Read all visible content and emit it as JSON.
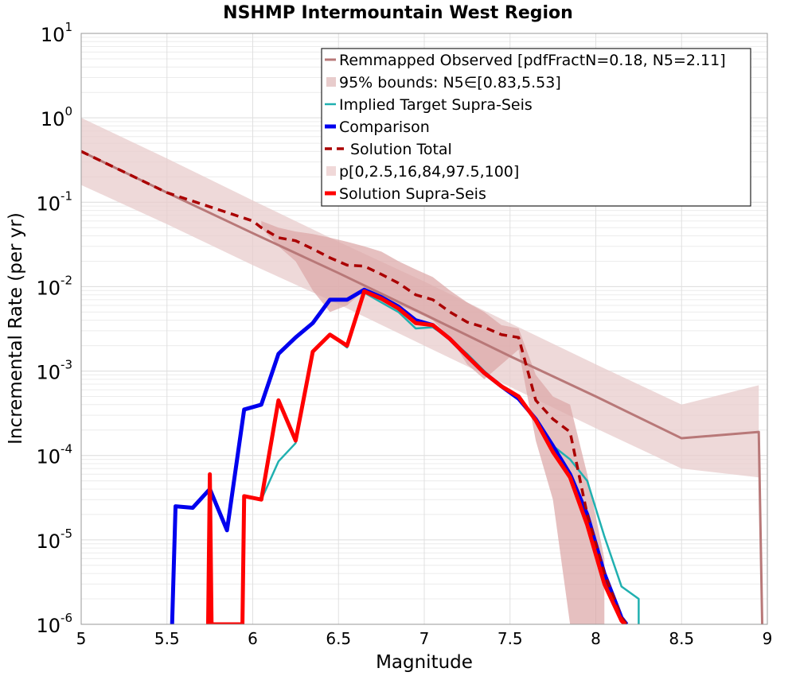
{
  "chart_data": {
    "type": "line",
    "title": "NSHMP Intermountain West Region",
    "xlabel": "Magnitude",
    "ylabel": "Incremental Rate (per yr)",
    "xlim": [
      5,
      9
    ],
    "ylim": [
      1e-06,
      10
    ],
    "y_scale": "log",
    "grid": true,
    "legend_placement": "top-right",
    "x_ticks": [
      "5",
      "5.5",
      "6",
      "6.5",
      "7",
      "7.5",
      "8",
      "8.5",
      "9"
    ],
    "x_tick_values": [
      5,
      5.5,
      6,
      6.5,
      7,
      7.5,
      8,
      8.5,
      9
    ],
    "y_ticks": [
      {
        "value": 1e-06,
        "base": "10",
        "exp": "-6"
      },
      {
        "value": 1e-05,
        "base": "10",
        "exp": "-5"
      },
      {
        "value": 0.0001,
        "base": "10",
        "exp": "-4"
      },
      {
        "value": 0.001,
        "base": "10",
        "exp": "-3"
      },
      {
        "value": 0.01,
        "base": "10",
        "exp": "-2"
      },
      {
        "value": 0.1,
        "base": "10",
        "exp": "-1"
      },
      {
        "value": 1,
        "base": "10",
        "exp": "0"
      },
      {
        "value": 10,
        "base": "10",
        "exp": "1"
      }
    ],
    "bands": [
      {
        "name": "95% bounds: N5∈[0.83,5.53]",
        "color": "#e8cccc",
        "x": [
          5.0,
          5.5,
          6.0,
          6.5,
          7.0,
          7.5,
          8.0,
          8.5,
          8.95
        ],
        "upper": [
          1.0,
          0.33,
          0.105,
          0.034,
          0.0115,
          0.0037,
          0.0012,
          0.0004,
          0.00068
        ],
        "lower": [
          0.16,
          0.055,
          0.018,
          0.0062,
          0.002,
          0.00065,
          0.00021,
          7e-05,
          5.5e-05
        ]
      },
      {
        "name": "p[0,2.5,16,84,97.5,100]",
        "color": "#dba5a5",
        "x": [
          6.05,
          6.15,
          6.25,
          6.35,
          6.45,
          6.55,
          6.65,
          6.75,
          6.85,
          6.95,
          7.05,
          7.15,
          7.25,
          7.35,
          7.45,
          7.55,
          7.65,
          7.75,
          7.85,
          7.95,
          8.05
        ],
        "upper": [
          0.06,
          0.05,
          0.045,
          0.042,
          0.038,
          0.034,
          0.03,
          0.026,
          0.02,
          0.016,
          0.013,
          0.009,
          0.0065,
          0.005,
          0.0035,
          0.0032,
          0.0009,
          0.0005,
          0.0004,
          6e-05,
          6e-06
        ],
        "lower": [
          0.05,
          0.03,
          0.02,
          0.009,
          0.005,
          0.006,
          0.009,
          0.008,
          0.006,
          0.005,
          0.004,
          0.0025,
          0.0012,
          0.0008,
          0.0012,
          0.0018,
          0.00015,
          3e-05,
          1e-06,
          1e-06,
          1e-06
        ]
      }
    ],
    "series": [
      {
        "name": "Remmapped Observed [pdfFractN=0.18, N5=2.11]",
        "color": "#b87878",
        "width": 3,
        "dash": "",
        "x": [
          5.0,
          5.5,
          6.0,
          6.5,
          7.0,
          7.5,
          8.0,
          8.5,
          8.95,
          8.97
        ],
        "y": [
          0.4,
          0.13,
          0.043,
          0.0145,
          0.0047,
          0.0015,
          0.0005,
          0.00016,
          0.00019,
          1e-06
        ]
      },
      {
        "name": "Implied Target Supra-Seis",
        "color": "#20b0b0",
        "width": 2.5,
        "dash": "",
        "x": [
          6.05,
          6.15,
          6.25,
          6.35,
          6.45,
          6.55,
          6.65,
          6.75,
          6.85,
          6.95,
          7.05,
          7.15,
          7.25,
          7.35,
          7.45,
          7.55,
          7.65,
          7.75,
          7.85,
          7.95,
          8.05,
          8.15,
          8.25,
          8.25
        ],
        "y": [
          3e-05,
          8.5e-05,
          0.00014,
          0.0017,
          0.0027,
          0.0019,
          0.0085,
          0.0065,
          0.005,
          0.0032,
          0.0033,
          0.0024,
          0.0016,
          0.001,
          0.00066,
          0.00047,
          0.00028,
          0.00013,
          9e-05,
          5e-05,
          1.1e-05,
          2.8e-06,
          2e-06,
          1e-06
        ]
      },
      {
        "name": "Comparison",
        "color": "#0000ee",
        "width": 5,
        "dash": "",
        "x": [
          5.53,
          5.55,
          5.65,
          5.75,
          5.85,
          5.95,
          6.05,
          6.15,
          6.25,
          6.35,
          6.45,
          6.55,
          6.65,
          6.75,
          6.85,
          6.95,
          7.05,
          7.15,
          7.25,
          7.35,
          7.45,
          7.55,
          7.65,
          7.75,
          7.85,
          7.95,
          8.05,
          8.15,
          8.18
        ],
        "y": [
          1e-06,
          2.5e-05,
          2.4e-05,
          4e-05,
          1.3e-05,
          0.00035,
          0.0004,
          0.0016,
          0.0025,
          0.0037,
          0.007,
          0.007,
          0.0092,
          0.0075,
          0.0058,
          0.004,
          0.0035,
          0.0024,
          0.0015,
          0.00095,
          0.00066,
          0.00047,
          0.00027,
          0.00013,
          6e-05,
          2e-05,
          4e-06,
          1.2e-06,
          1e-06
        ]
      },
      {
        "name": "Solution Total",
        "color": "#aa0000",
        "width": 3.5,
        "dash": "10,7",
        "x": [
          5.0,
          5.5,
          6.0,
          6.05,
          6.15,
          6.25,
          6.35,
          6.45,
          6.55,
          6.65,
          6.75,
          6.85,
          6.95,
          7.05,
          7.15,
          7.25,
          7.35,
          7.45,
          7.55,
          7.65,
          7.75,
          7.85,
          7.95,
          8.05,
          8.15,
          8.18
        ],
        "y": [
          0.4,
          0.13,
          0.06,
          0.05,
          0.038,
          0.035,
          0.028,
          0.022,
          0.018,
          0.0175,
          0.014,
          0.011,
          0.008,
          0.007,
          0.005,
          0.0038,
          0.0033,
          0.0027,
          0.0025,
          0.00045,
          0.00027,
          0.00019,
          2e-05,
          4e-06,
          1.2e-06,
          1e-06
        ]
      },
      {
        "name": "Solution Supra-Seis",
        "color": "#ff0000",
        "width": 5,
        "dash": "",
        "x": [
          5.74,
          5.75,
          5.76,
          5.94,
          5.95,
          6.05,
          6.15,
          6.25,
          6.35,
          6.45,
          6.55,
          6.65,
          6.75,
          6.85,
          6.95,
          7.05,
          7.15,
          7.25,
          7.35,
          7.45,
          7.55,
          7.65,
          7.75,
          7.85,
          7.95,
          8.05,
          8.15,
          8.17
        ],
        "y": [
          1e-06,
          6e-05,
          1e-06,
          1e-06,
          3.3e-05,
          3e-05,
          0.00045,
          0.00015,
          0.0017,
          0.0027,
          0.002,
          0.0088,
          0.0072,
          0.0055,
          0.0037,
          0.0035,
          0.0024,
          0.0015,
          0.00095,
          0.00066,
          0.0005,
          0.00026,
          0.00011,
          5.5e-05,
          1.5e-05,
          3e-06,
          1.1e-06,
          1e-06
        ]
      }
    ],
    "legend": [
      {
        "label": "Remmapped Observed [pdfFractN=0.18, N5=2.11]",
        "kind": "line",
        "color": "#b87878",
        "width": 3,
        "dash": ""
      },
      {
        "label": "95% bounds: N5∈[0.83,5.53]",
        "kind": "band",
        "color": "#e8cccc"
      },
      {
        "label": "Implied Target Supra-Seis",
        "kind": "line",
        "color": "#20b0b0",
        "width": 2.5,
        "dash": ""
      },
      {
        "label": "Comparison",
        "kind": "line",
        "color": "#0000ee",
        "width": 5,
        "dash": ""
      },
      {
        "label": "Solution Total",
        "kind": "line",
        "color": "#aa0000",
        "width": 3.5,
        "dash": "10,7"
      },
      {
        "label": "p[0,2.5,16,84,97.5,100]",
        "kind": "band",
        "color": "#f0d8d8"
      },
      {
        "label": "Solution Supra-Seis",
        "kind": "line",
        "color": "#ff0000",
        "width": 5,
        "dash": ""
      }
    ]
  }
}
